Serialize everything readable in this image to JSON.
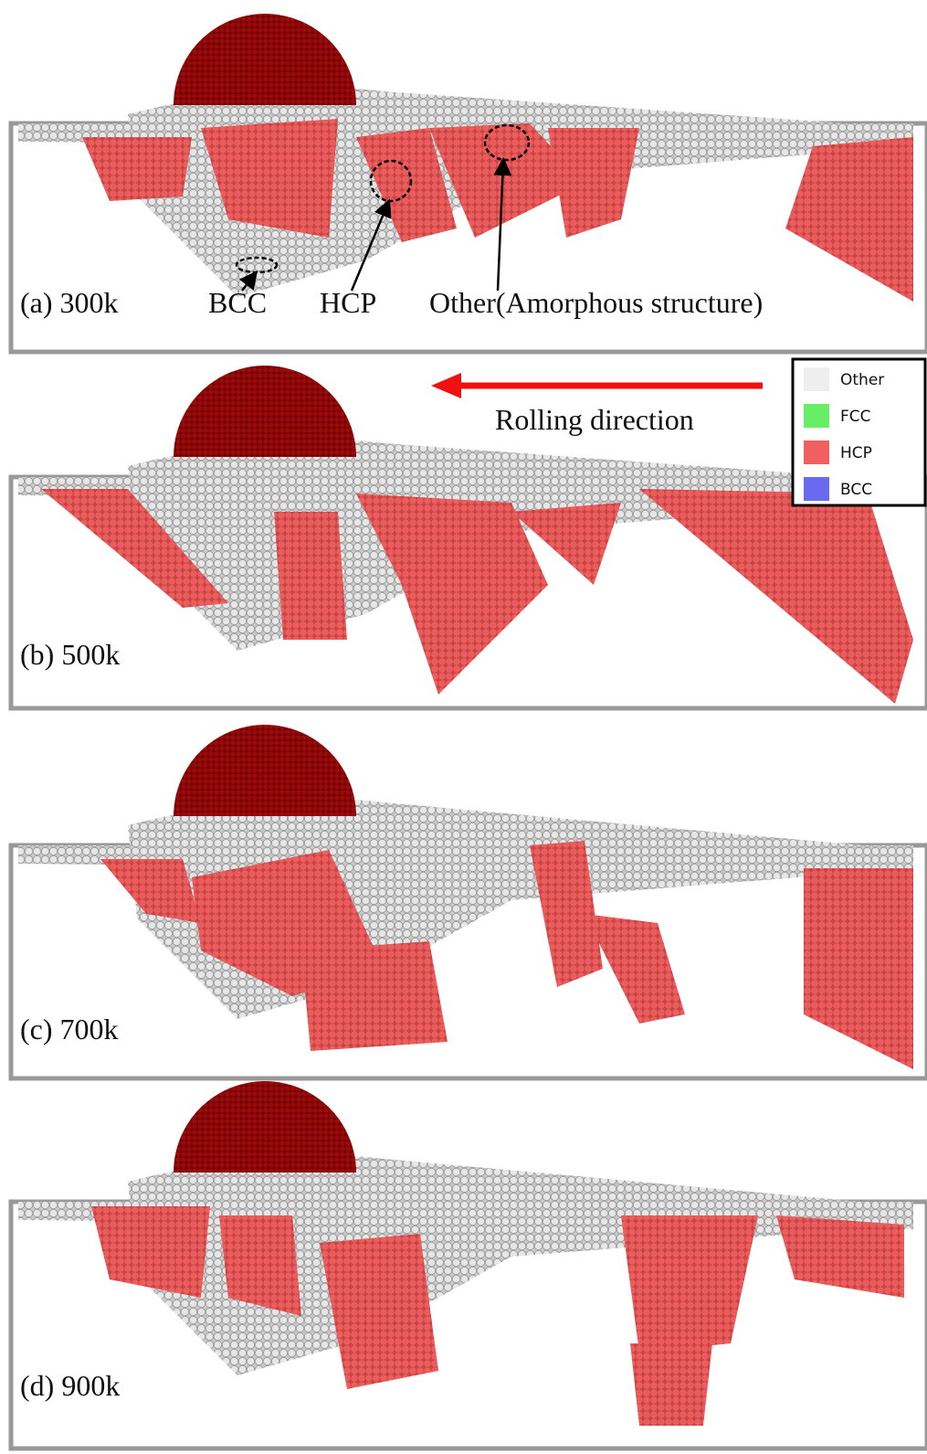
{
  "panels": [
    {
      "label": "(a) 300k"
    },
    {
      "label": "(b) 500k"
    },
    {
      "label": "(c) 700k"
    },
    {
      "label": "(d) 900k"
    }
  ],
  "annotations": {
    "bcc": "BCC",
    "hcp": "HCP",
    "other": "Other(Amorphous structure)",
    "direction": "Rolling direction"
  },
  "legend": [
    {
      "label": "Other",
      "color": "#eeeeee"
    },
    {
      "label": "FCC",
      "color": "#66ee66"
    },
    {
      "label": "HCP",
      "color": "#f06060"
    },
    {
      "label": "BCC",
      "color": "#6a6af0"
    }
  ]
}
